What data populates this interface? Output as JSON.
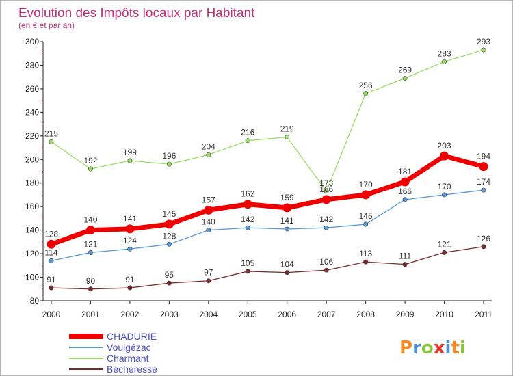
{
  "chart_data": {
    "type": "line",
    "title": "Evolution des Impôts locaux par Habitant",
    "subtitle": "(en € et par an)",
    "xlabel": "",
    "ylabel": "",
    "ylim": [
      80,
      300
    ],
    "yticks": [
      80,
      100,
      120,
      140,
      160,
      180,
      200,
      220,
      240,
      260,
      280,
      300
    ],
    "categories": [
      "2000",
      "2001",
      "2002",
      "2003",
      "2004",
      "2005",
      "2006",
      "2007",
      "2008",
      "2009",
      "2010",
      "2011"
    ],
    "series": [
      {
        "name": "CHADURIE",
        "color": "#ee0000",
        "values": [
          128,
          140,
          141,
          145,
          157,
          162,
          159,
          166,
          170,
          181,
          203,
          194
        ]
      },
      {
        "name": "Voulgézac",
        "color": "#5b9bd5",
        "values": [
          114,
          121,
          124,
          128,
          140,
          142,
          141,
          142,
          145,
          166,
          170,
          174
        ]
      },
      {
        "name": "Charmant",
        "color": "#99dd66",
        "values": [
          215,
          192,
          199,
          196,
          204,
          216,
          219,
          173,
          256,
          269,
          283,
          293
        ]
      },
      {
        "name": "Bécheresse",
        "color": "#7a2a2a",
        "values": [
          91,
          90,
          91,
          95,
          97,
          105,
          104,
          106,
          113,
          111,
          121,
          126
        ]
      }
    ],
    "legend": "bottom-left",
    "grid": false
  },
  "logo": {
    "text": "Proxiti"
  }
}
